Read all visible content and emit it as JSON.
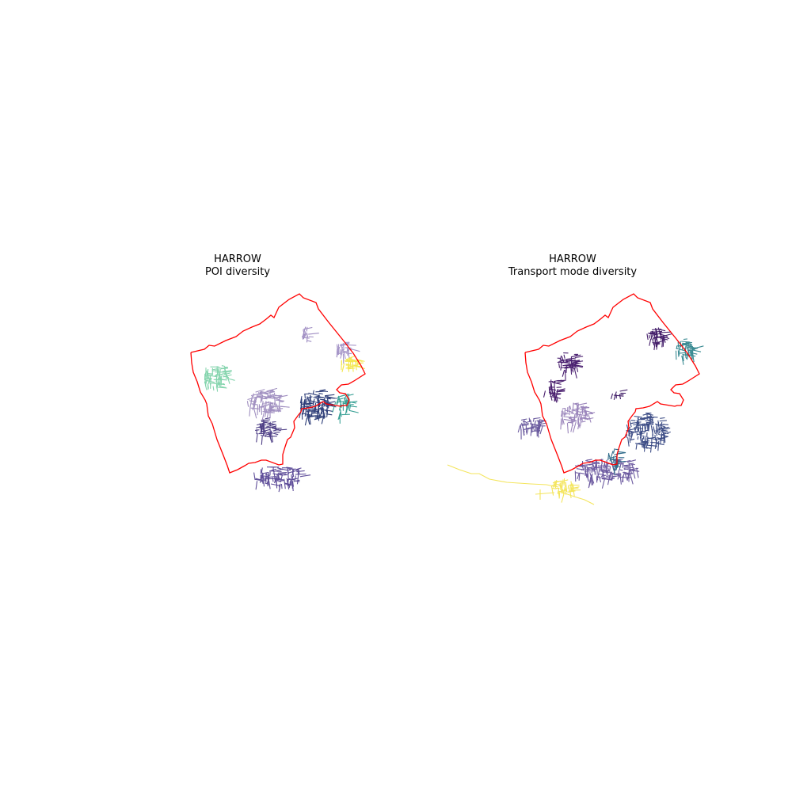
{
  "maps": [
    {
      "id": "poi",
      "title_line1": "HARROW",
      "title_line2": "POI diversity",
      "boundary_color": "#ff0000",
      "clusters": [
        {
          "name": "cluster-west",
          "color": "#84d4ad"
        },
        {
          "name": "cluster-north-small",
          "color": "#9e8cc2"
        },
        {
          "name": "cluster-northeast",
          "color": "#a696c8"
        },
        {
          "name": "cluster-east-yellow",
          "color": "#f3e74f"
        },
        {
          "name": "cluster-center",
          "color": "#a08fc0"
        },
        {
          "name": "cluster-center-south",
          "color": "#4e3f86"
        },
        {
          "name": "cluster-southeast",
          "color": "#2d3d78"
        },
        {
          "name": "cluster-east-teal",
          "color": "#3aa196"
        },
        {
          "name": "cluster-south",
          "color": "#5e4d99"
        }
      ]
    },
    {
      "id": "transport",
      "title_line1": "HARROW",
      "title_line2": "Transport mode diversity",
      "boundary_color": "#ff0000",
      "clusters": [
        {
          "name": "cluster-northwest",
          "color": "#4a2070"
        },
        {
          "name": "cluster-west",
          "color": "#4a1f6e"
        },
        {
          "name": "cluster-far-west",
          "color": "#6a5a9e"
        },
        {
          "name": "cluster-center",
          "color": "#9a85bb"
        },
        {
          "name": "cluster-center-small",
          "color": "#3f1c66"
        },
        {
          "name": "cluster-north",
          "color": "#451f6b"
        },
        {
          "name": "cluster-northeast-teal",
          "color": "#3b8b93"
        },
        {
          "name": "cluster-east",
          "color": "#3d4d86"
        },
        {
          "name": "cluster-south",
          "color": "#6c5aa0"
        },
        {
          "name": "cluster-south-teal",
          "color": "#2f6b8a"
        },
        {
          "name": "cluster-southwest-yellow",
          "color": "#f4e55c"
        }
      ]
    }
  ]
}
